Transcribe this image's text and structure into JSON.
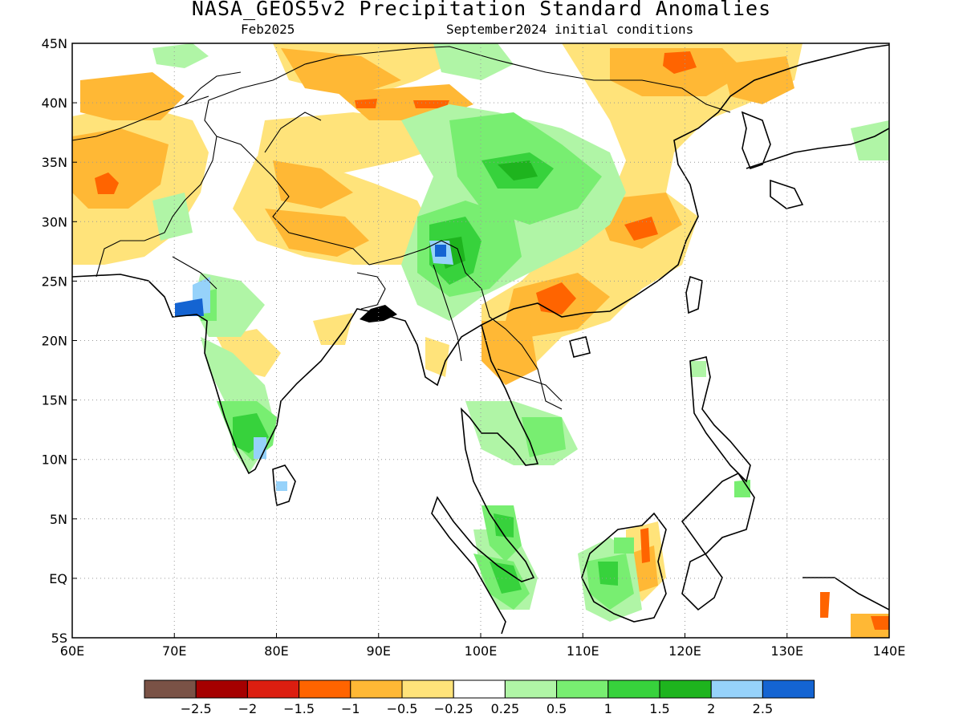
{
  "title": "NASA_GEOS5v2 Precipitation Standard Anomalies",
  "subtitle_left": "Feb2025",
  "subtitle_right": "September2024 initial conditions",
  "map": {
    "lon_range": [
      60,
      140
    ],
    "lat_range": [
      -5,
      45
    ],
    "x_ticks": [
      "60E",
      "70E",
      "80E",
      "90E",
      "100E",
      "110E",
      "120E",
      "130E",
      "140E"
    ],
    "y_ticks": [
      "5S",
      "EQ",
      "5N",
      "10N",
      "15N",
      "20N",
      "25N",
      "30N",
      "35N",
      "40N",
      "45N"
    ],
    "grid": "dotted",
    "region": "South and East Asia"
  },
  "colorbar": {
    "colors": [
      "#7a5246",
      "#a50000",
      "#dc1e10",
      "#ff6400",
      "#ffb835",
      "#ffe37a",
      "#ffffff",
      "#b0f5a6",
      "#78ee71",
      "#37d23c",
      "#1eb41e",
      "#96d2fa",
      "#1464d2"
    ],
    "labels": [
      "−2.5",
      "−2",
      "−1.5",
      "−1",
      "−0.5",
      "−0.25",
      "0.25",
      "0.5",
      "1",
      "1.5",
      "2",
      "2.5"
    ]
  }
}
